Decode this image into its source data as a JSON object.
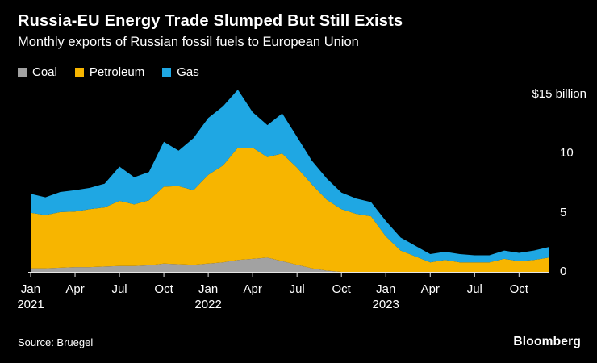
{
  "chart_data": {
    "type": "area",
    "stacked": true,
    "title": "Russia-EU Energy Trade Slumped But Still Exists",
    "subtitle": "Monthly exports of Russian fossil fuels to European Union",
    "unit": "$ billion",
    "grid": false,
    "background": "#000000",
    "legend_position": "top-left",
    "ylim": [
      0,
      16
    ],
    "x": [
      "Jan 2021",
      "Feb 2021",
      "Mar 2021",
      "Apr 2021",
      "May 2021",
      "Jun 2021",
      "Jul 2021",
      "Aug 2021",
      "Sep 2021",
      "Oct 2021",
      "Nov 2021",
      "Dec 2021",
      "Jan 2022",
      "Feb 2022",
      "Mar 2022",
      "Apr 2022",
      "May 2022",
      "Jun 2022",
      "Jul 2022",
      "Aug 2022",
      "Sep 2022",
      "Oct 2022",
      "Nov 2022",
      "Dec 2022",
      "Jan 2023",
      "Feb 2023",
      "Mar 2023",
      "Apr 2023",
      "May 2023",
      "Jun 2023",
      "Jul 2023",
      "Aug 2023",
      "Sep 2023",
      "Oct 2023",
      "Nov 2023",
      "Dec 2023"
    ],
    "x_ticks": [
      {
        "index": 0,
        "month": "Jan",
        "year": "2021"
      },
      {
        "index": 3,
        "month": "Apr"
      },
      {
        "index": 6,
        "month": "Jul"
      },
      {
        "index": 9,
        "month": "Oct"
      },
      {
        "index": 12,
        "month": "Jan",
        "year": "2022"
      },
      {
        "index": 15,
        "month": "Apr"
      },
      {
        "index": 18,
        "month": "Jul"
      },
      {
        "index": 21,
        "month": "Oct"
      },
      {
        "index": 24,
        "month": "Jan",
        "year": "2023"
      },
      {
        "index": 27,
        "month": "Apr"
      },
      {
        "index": 30,
        "month": "Jul"
      },
      {
        "index": 33,
        "month": "Oct"
      }
    ],
    "y_ticks": [
      {
        "value": 15,
        "label": "$15 billion",
        "edge": true
      },
      {
        "value": 10,
        "label": "10"
      },
      {
        "value": 5,
        "label": "5"
      },
      {
        "value": 0,
        "label": "0"
      }
    ],
    "series": [
      {
        "name": "Coal",
        "color": "#a2a2a2",
        "values": [
          0.3,
          0.3,
          0.35,
          0.4,
          0.4,
          0.45,
          0.5,
          0.5,
          0.55,
          0.7,
          0.65,
          0.6,
          0.7,
          0.8,
          1.0,
          1.1,
          1.2,
          0.9,
          0.6,
          0.3,
          0.1,
          0,
          0,
          0,
          0,
          0,
          0,
          0,
          0,
          0,
          0,
          0,
          0,
          0,
          0,
          0
        ]
      },
      {
        "name": "Petroleum",
        "color": "#f7b500",
        "values": [
          4.7,
          4.5,
          4.7,
          4.7,
          4.9,
          5.0,
          5.5,
          5.2,
          5.5,
          6.5,
          6.6,
          6.3,
          7.5,
          8.2,
          9.5,
          9.4,
          8.5,
          9.1,
          8.2,
          7.1,
          6.0,
          5.3,
          4.9,
          4.7,
          3.0,
          1.8,
          1.3,
          0.8,
          1.0,
          0.8,
          0.8,
          0.8,
          1.1,
          0.9,
          1.0,
          1.2
        ]
      },
      {
        "name": "Gas",
        "color": "#1fa7e3",
        "values": [
          1.6,
          1.5,
          1.7,
          1.8,
          1.8,
          2.0,
          2.9,
          2.3,
          2.4,
          3.8,
          3.0,
          4.4,
          4.8,
          5.0,
          4.9,
          3.0,
          2.7,
          3.4,
          2.6,
          2.0,
          1.8,
          1.4,
          1.3,
          1.2,
          1.3,
          1.1,
          0.9,
          0.7,
          0.7,
          0.7,
          0.6,
          0.6,
          0.7,
          0.7,
          0.8,
          0.9
        ]
      }
    ]
  },
  "footer": {
    "source": "Source: Bruegel",
    "brand": "Bloomberg"
  },
  "style": {
    "axis_color": "#e6e6e6",
    "text_color": "#ffffff",
    "background": "#000000"
  }
}
